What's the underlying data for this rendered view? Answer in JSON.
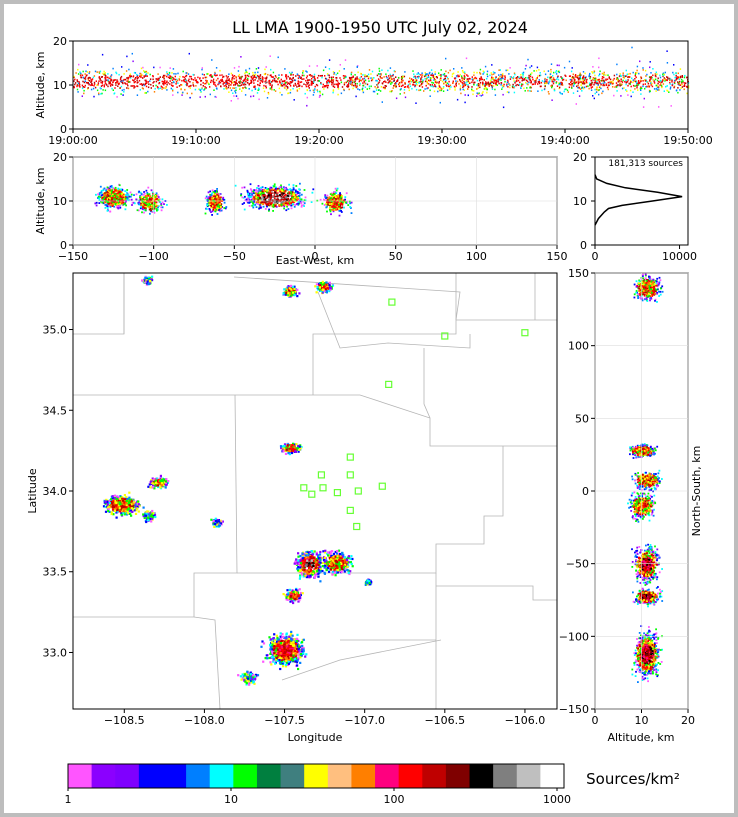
{
  "chart_data": [
    {
      "type": "scatter",
      "panel": "altitude-vs-time",
      "title": "LL LMA 1900-1950 UTC July 02, 2024",
      "xlabel": "",
      "ylabel": "Altitude, km",
      "x_ticks": [
        "19:00:00",
        "19:10:00",
        "19:20:00",
        "19:30:00",
        "19:40:00",
        "19:50:00"
      ],
      "y_ticks": [
        "0",
        "10",
        "20"
      ],
      "ylim": [
        0,
        20
      ],
      "typical_altitude_km": 11
    },
    {
      "type": "scatter",
      "panel": "altitude-vs-east-west",
      "xlabel": "East-West, km",
      "ylabel": "Altitude, km",
      "x_ticks": [
        "−150",
        "−100",
        "−50",
        "0",
        "50",
        "100",
        "150"
      ],
      "y_ticks": [
        "0",
        "10",
        "20"
      ],
      "xlim": [
        -150,
        150
      ],
      "ylim": [
        0,
        20
      ],
      "clusters": [
        {
          "x": -125,
          "x_range": [
            -140,
            -110
          ],
          "z": 11
        },
        {
          "x": -103,
          "x_range": [
            -115,
            -90
          ],
          "z": 10
        },
        {
          "x": -62,
          "x_range": [
            -72,
            -55
          ],
          "z": 10
        },
        {
          "x": -25,
          "x_range": [
            -52,
            5
          ],
          "z": 11
        },
        {
          "x": 12,
          "x_range": [
            0,
            24
          ],
          "z": 10
        }
      ]
    },
    {
      "type": "line",
      "panel": "altitude-histogram",
      "annotation": "181,313 sources",
      "x_ticks": [
        "0",
        "10000"
      ],
      "y_ticks": [
        "0",
        "10",
        "20"
      ],
      "xlim": [
        0,
        11000
      ],
      "ylim": [
        0,
        20
      ],
      "profile": [
        {
          "z": 4.5,
          "count": 0
        },
        {
          "z": 6,
          "count": 400
        },
        {
          "z": 7.5,
          "count": 1100
        },
        {
          "z": 8.3,
          "count": 1600
        },
        {
          "z": 9,
          "count": 3200
        },
        {
          "z": 10,
          "count": 6800
        },
        {
          "z": 11,
          "count": 10300
        },
        {
          "z": 12,
          "count": 7400
        },
        {
          "z": 13,
          "count": 3600
        },
        {
          "z": 14,
          "count": 1400
        },
        {
          "z": 15,
          "count": 200
        },
        {
          "z": 16,
          "count": 0
        }
      ]
    },
    {
      "type": "heatmap",
      "panel": "plan-view",
      "xlabel": "Longitude",
      "ylabel": "Latitude",
      "x_ticks": [
        "−108.5",
        "−108.0",
        "−107.5",
        "−107.0",
        "−106.5",
        "−106.0"
      ],
      "y_ticks": [
        "33.0",
        "33.5",
        "34.0",
        "34.5",
        "35.0"
      ],
      "xlim": [
        -108.82,
        -105.8
      ],
      "ylim": [
        32.65,
        35.35
      ],
      "stations": [
        [
          -106.83,
          35.17
        ],
        [
          -106.5,
          34.96
        ],
        [
          -106.0,
          34.98
        ],
        [
          -106.85,
          34.66
        ],
        [
          -107.09,
          34.21
        ],
        [
          -107.27,
          34.1
        ],
        [
          -107.09,
          34.1
        ],
        [
          -107.38,
          34.02
        ],
        [
          -107.26,
          34.02
        ],
        [
          -107.33,
          33.98
        ],
        [
          -107.17,
          33.99
        ],
        [
          -106.89,
          34.03
        ],
        [
          -107.04,
          34.0
        ],
        [
          -107.09,
          33.88
        ],
        [
          -107.05,
          33.78
        ]
      ],
      "storm_cells": [
        {
          "lon": -108.52,
          "lat": 33.92,
          "rlon": 0.18,
          "rlat": 0.09,
          "peak": 1
        },
        {
          "lon": -108.29,
          "lat": 34.06,
          "rlon": 0.1,
          "rlat": 0.05,
          "peak": 1
        },
        {
          "lon": -108.35,
          "lat": 33.85,
          "rlon": 0.06,
          "rlat": 0.05,
          "peak": 0
        },
        {
          "lon": -107.93,
          "lat": 33.81,
          "rlon": 0.05,
          "rlat": 0.04,
          "peak": 0
        },
        {
          "lon": -107.47,
          "lat": 34.27,
          "rlon": 0.1,
          "rlat": 0.05,
          "peak": 1
        },
        {
          "lon": -107.35,
          "lat": 33.55,
          "rlon": 0.13,
          "rlat": 0.13,
          "peak": 3
        },
        {
          "lon": -107.18,
          "lat": 33.56,
          "rlon": 0.14,
          "rlat": 0.11,
          "peak": 1
        },
        {
          "lon": -107.45,
          "lat": 33.36,
          "rlon": 0.08,
          "rlat": 0.06,
          "peak": 2
        },
        {
          "lon": -107.5,
          "lat": 33.02,
          "rlon": 0.18,
          "rlat": 0.15,
          "peak": 2
        },
        {
          "lon": -107.73,
          "lat": 32.85,
          "rlon": 0.08,
          "rlat": 0.06,
          "peak": 0
        },
        {
          "lon": -107.47,
          "lat": 35.24,
          "rlon": 0.08,
          "rlat": 0.05,
          "peak": 1
        },
        {
          "lon": -107.26,
          "lat": 35.27,
          "rlon": 0.08,
          "rlat": 0.05,
          "peak": 1
        },
        {
          "lon": -108.36,
          "lat": 35.31,
          "rlon": 0.05,
          "rlat": 0.04,
          "peak": 0
        },
        {
          "lon": -106.98,
          "lat": 33.44,
          "rlon": 0.03,
          "rlat": 0.03,
          "peak": 0
        }
      ]
    },
    {
      "type": "scatter",
      "panel": "north-south-vs-altitude",
      "xlabel": "Altitude, km",
      "ylabel": "North-South, km",
      "x_ticks": [
        "0",
        "10",
        "20"
      ],
      "y_ticks": [
        "−150",
        "−100",
        "−50",
        "0",
        "50",
        "100",
        "150"
      ],
      "xlim": [
        0,
        20
      ],
      "ylim": [
        -150,
        150
      ],
      "clusters": [
        {
          "y": 140,
          "y_range": [
            125,
            150
          ],
          "z": 11
        },
        {
          "y": 28,
          "y_range": [
            22,
            36
          ],
          "z": 10
        },
        {
          "y": 8,
          "y_range": [
            0,
            18
          ],
          "z": 11
        },
        {
          "y": -10,
          "y_range": [
            -25,
            0
          ],
          "z": 10
        },
        {
          "y": -50,
          "y_range": [
            -65,
            -30
          ],
          "z": 11
        },
        {
          "y": -72,
          "y_range": [
            -80,
            -64
          ],
          "z": 11
        },
        {
          "y": -112,
          "y_range": [
            -135,
            -90
          ],
          "z": 11
        }
      ]
    },
    {
      "type": "table",
      "panel": "colorbar",
      "label": "Sources/km²",
      "tick_labels": [
        "1",
        "10",
        "100",
        "1000"
      ],
      "scale": "log",
      "range": [
        1,
        1000
      ],
      "colors": [
        "#ff55ff",
        "#8b00ff",
        "#7f00ff",
        "#0000ff",
        "#0000ff",
        "#007fff",
        "#00ffff",
        "#00ff00",
        "#007f3f",
        "#3f7f7f",
        "#ffff00",
        "#ffbf7f",
        "#ff7f00",
        "#ff007f",
        "#ff0000",
        "#bf0000",
        "#7f0000",
        "#000000",
        "#7f7f7f",
        "#bfbfbf",
        "#ffffff"
      ]
    }
  ]
}
